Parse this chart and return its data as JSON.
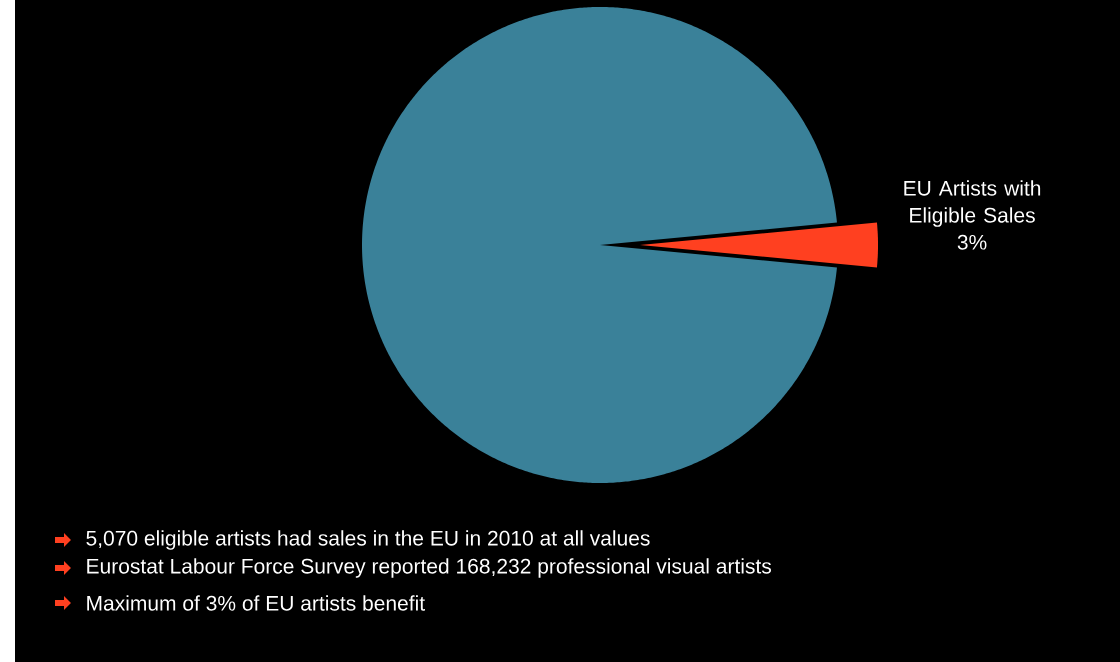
{
  "chart_data": {
    "type": "pie",
    "categories": [
      null,
      "EU Artists with Eligible Sales"
    ],
    "values": [
      97,
      3
    ],
    "colors": [
      "#3a8199",
      "#ff4020"
    ],
    "value_labels": [
      null,
      "3%"
    ],
    "annotations": [
      "5,070 eligible artists had sales in the EU in 2010 at all values",
      "Eurostat Labour Force Survey reported 168,232 professional visual artists",
      "Maximum of 3% of EU artists benefit"
    ]
  }
}
